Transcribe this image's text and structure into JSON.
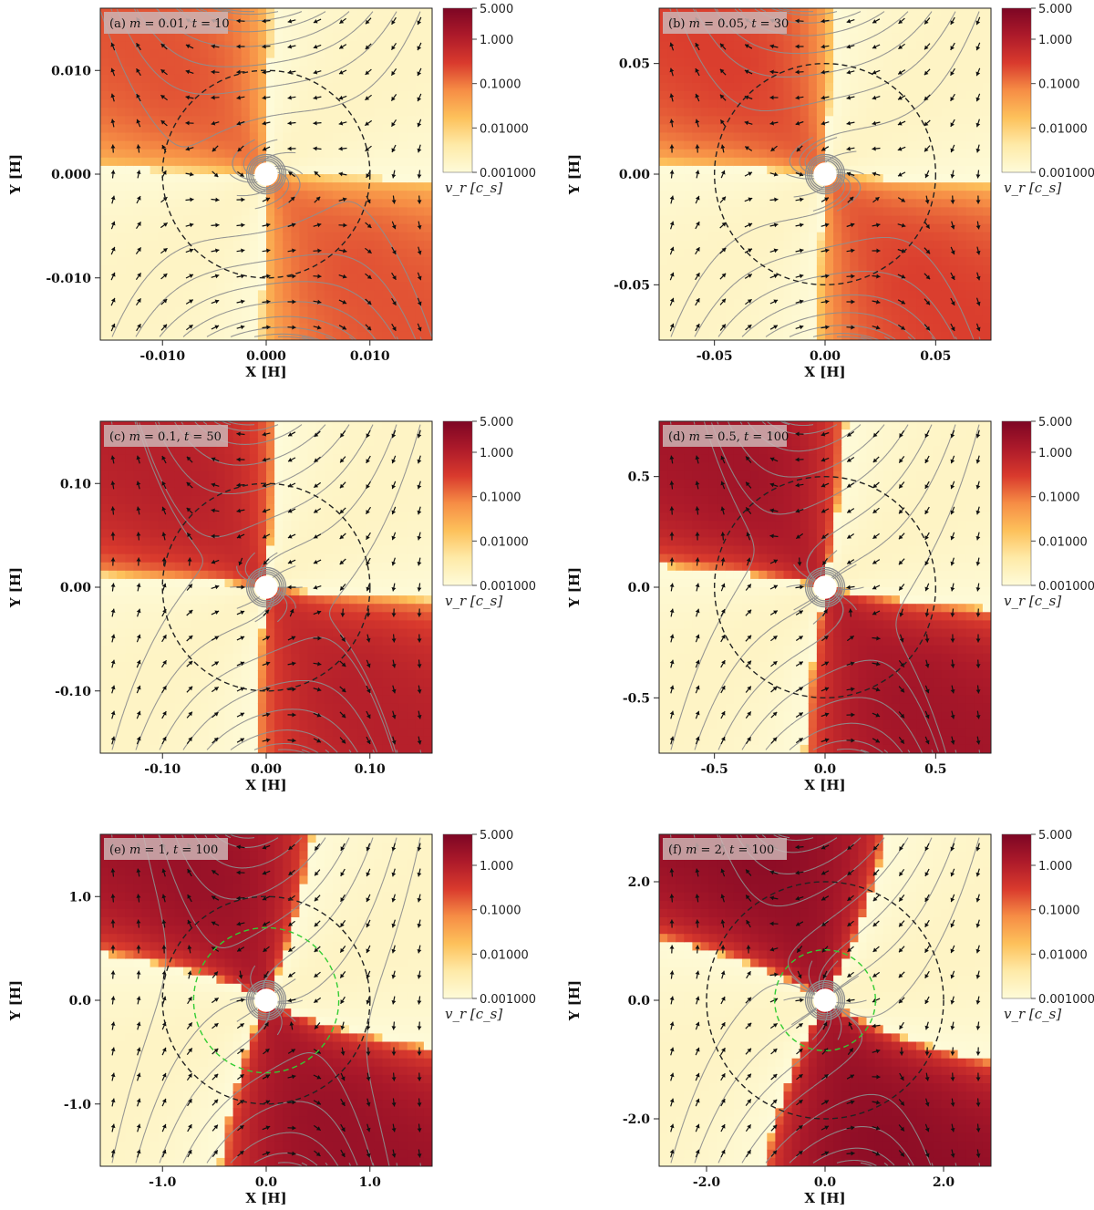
{
  "chart_data": [
    {
      "type": "heatmap",
      "panel": "(a)",
      "m": "0.01",
      "t": "10",
      "xlabel": "X [H]",
      "ylabel": "Y [H]",
      "xlim": [
        -0.016,
        0.016
      ],
      "ylim": [
        -0.016,
        0.016
      ],
      "xticks": [
        -0.01,
        0.0,
        0.01
      ],
      "xtick_labels": [
        "-0.010",
        "0.000",
        "0.010"
      ],
      "yticks": [
        -0.01,
        0.0,
        0.01
      ],
      "ytick_labels": [
        "-0.010",
        "0.000",
        "0.010"
      ],
      "hill_radius": 0.01,
      "inner_radius": 0,
      "inflow_strength": 0.25,
      "tilt": 0.05,
      "background_scale": 0.5
    },
    {
      "type": "heatmap",
      "panel": "(b)",
      "m": "0.05",
      "t": "30",
      "xlabel": "X [H]",
      "ylabel": "Y [H]",
      "xlim": [
        -0.075,
        0.075
      ],
      "ylim": [
        -0.075,
        0.075
      ],
      "xticks": [
        -0.05,
        0.0,
        0.05
      ],
      "xtick_labels": [
        "-0.05",
        "0.00",
        "0.05"
      ],
      "yticks": [
        -0.05,
        0.0,
        0.05
      ],
      "ytick_labels": [
        "-0.05",
        "0.00",
        "0.05"
      ],
      "hill_radius": 0.05,
      "inner_radius": 0,
      "inflow_strength": 0.3,
      "tilt": 0.08,
      "background_scale": 0.6
    },
    {
      "type": "heatmap",
      "panel": "(c)",
      "m": "0.1",
      "t": "50",
      "xlabel": "X [H]",
      "ylabel": "Y [H]",
      "xlim": [
        -0.16,
        0.16
      ],
      "ylim": [
        -0.16,
        0.16
      ],
      "xticks": [
        -0.1,
        0.0,
        0.1
      ],
      "xtick_labels": [
        "-0.10",
        "0.00",
        "0.10"
      ],
      "yticks": [
        -0.1,
        0.0,
        0.1
      ],
      "ytick_labels": [
        "-0.10",
        "0.00",
        "0.10"
      ],
      "hill_radius": 0.1,
      "inner_radius": 0,
      "inflow_strength": 0.55,
      "tilt": 0.12,
      "background_scale": 0.75
    },
    {
      "type": "heatmap",
      "panel": "(d)",
      "m": "0.5",
      "t": "100",
      "xlabel": "X [H]",
      "ylabel": "Y [H]",
      "xlim": [
        -0.75,
        0.75
      ],
      "ylim": [
        -0.75,
        0.75
      ],
      "xticks": [
        -0.5,
        0.0,
        0.5
      ],
      "xtick_labels": [
        "-0.5",
        "0.0",
        "0.5"
      ],
      "yticks": [
        -0.5,
        0.0,
        0.5
      ],
      "ytick_labels": [
        "-0.5",
        "0.0",
        "0.5"
      ],
      "hill_radius": 0.5,
      "inner_radius": 0,
      "inflow_strength": 0.75,
      "tilt": 0.2,
      "background_scale": 0.9
    },
    {
      "type": "heatmap",
      "panel": "(e)",
      "m": "1",
      "t": "100",
      "xlabel": "X [H]",
      "ylabel": "Y [H]",
      "xlim": [
        -1.6,
        1.6
      ],
      "ylim": [
        -1.6,
        1.6
      ],
      "xticks": [
        -1.0,
        0.0,
        1.0
      ],
      "xtick_labels": [
        "-1.0",
        "0.0",
        "1.0"
      ],
      "yticks": [
        -1.0,
        0.0,
        1.0
      ],
      "ytick_labels": [
        "-1.0",
        "0.0",
        "1.0"
      ],
      "hill_radius": 1.0,
      "inner_radius": 0.7,
      "inflow_strength": 0.85,
      "tilt": 0.45,
      "background_scale": 1.0
    },
    {
      "type": "heatmap",
      "panel": "(f)",
      "m": "2",
      "t": "100",
      "xlabel": "X [H]",
      "ylabel": "Y [H]",
      "xlim": [
        -2.8,
        2.8
      ],
      "ylim": [
        -2.8,
        2.8
      ],
      "xticks": [
        -2.0,
        0.0,
        2.0
      ],
      "xtick_labels": [
        "-2.0",
        "0.0",
        "2.0"
      ],
      "yticks": [
        -2.0,
        0.0,
        2.0
      ],
      "ytick_labels": [
        "-2.0",
        "0.0",
        "2.0"
      ],
      "hill_radius": 2.0,
      "inner_radius": 0.85,
      "inflow_strength": 1.0,
      "tilt": 0.55,
      "background_scale": 1.0
    }
  ],
  "colorbar": {
    "title": "v_r [c_s]",
    "scale": "log",
    "range": [
      0.001,
      5.0
    ],
    "tick_values": [
      5.0,
      1.0,
      0.1,
      0.01,
      0.001
    ],
    "tick_labels": [
      "5.000",
      "1.000",
      "0.1000",
      "0.01000",
      "0.001000"
    ],
    "colors": [
      "#fefbd9",
      "#feeaa8",
      "#fdc15b",
      "#f68d45",
      "#d93a2d",
      "#ad1a2a",
      "#7d0624"
    ]
  },
  "colors": {
    "hill_circle": "#222222",
    "inner_circle": "#33cc33",
    "streamline": "#8e8e8e",
    "arrow": "#111111",
    "panel_label_bg": "#cdb4b4"
  }
}
